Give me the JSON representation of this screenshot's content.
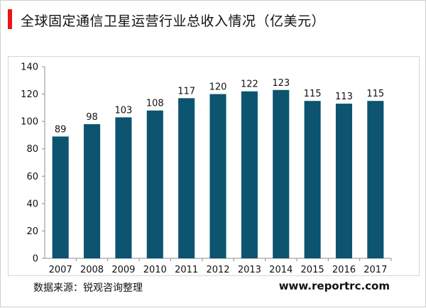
{
  "title": "全球固定通信卫星运营行业总收入情况（亿美元）",
  "source": "数据来源：锐观咨询整理",
  "website": "www.reportrc.com",
  "colors": {
    "bar": "#0c5470",
    "accent": "#e8161b",
    "axis": "#8c8c8c"
  },
  "chart_data": {
    "type": "bar",
    "categories": [
      "2007",
      "2008",
      "2009",
      "2010",
      "2011",
      "2012",
      "2013",
      "2014",
      "2015",
      "2016",
      "2017"
    ],
    "values": [
      89,
      98,
      103,
      108,
      117,
      120,
      122,
      123,
      115,
      113,
      115
    ],
    "title": "全球固定通信卫星运营行业总收入情况（亿美元）",
    "xlabel": "",
    "ylabel": "",
    "ylim": [
      0,
      140
    ],
    "yticks": [
      0,
      20,
      40,
      60,
      80,
      100,
      120,
      140
    ],
    "grid": false,
    "data_labels": true
  }
}
